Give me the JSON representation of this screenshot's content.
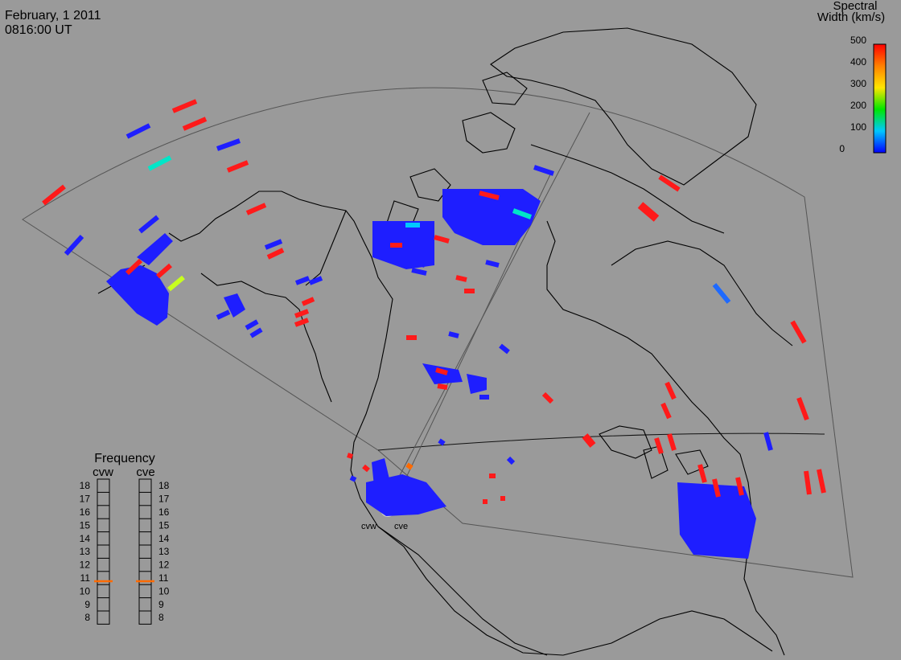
{
  "header": {
    "date": "February, 1 2011",
    "time": "0816:00 UT"
  },
  "colorbar": {
    "title_line1": "Spectral",
    "title_line2": "Width (km/s)",
    "ticks": [
      "500",
      "400",
      "300",
      "200",
      "100",
      "0"
    ]
  },
  "frequency_panel": {
    "title": "Frequency",
    "radars": [
      {
        "label": "cvw",
        "selected_mhz": 11
      },
      {
        "label": "cve",
        "selected_mhz": 11
      }
    ],
    "scale": [
      "18",
      "17",
      "16",
      "15",
      "14",
      "13",
      "12",
      "11",
      "10",
      "9",
      "8"
    ]
  },
  "site_labels": {
    "west": "cvw",
    "east": "cve"
  },
  "colors": {
    "background": "#9a9a9a",
    "low": "#1e1eff",
    "mid": "#00e6c8",
    "high": "#ff1a1a",
    "accent": "#ff6a00"
  }
}
